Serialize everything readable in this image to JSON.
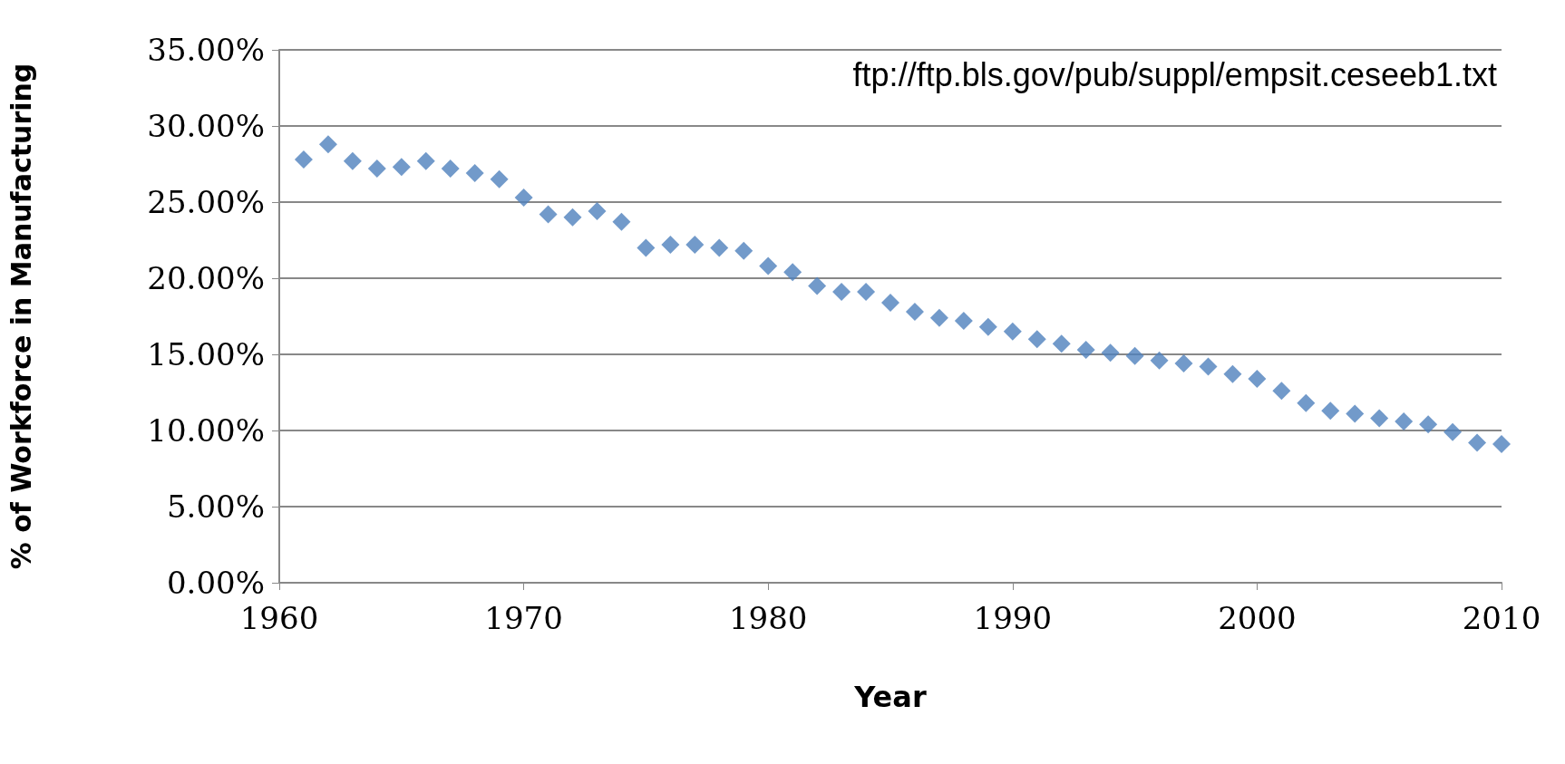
{
  "chart_data": {
    "type": "scatter",
    "xlabel": "Year",
    "ylabel": "% of Workforce in Manufacturing",
    "annotations": [
      "ftp://ftp.bls.gov/pub/suppl/empsit.ceseeb1.txt"
    ],
    "x": [
      1961,
      1962,
      1963,
      1964,
      1965,
      1966,
      1967,
      1968,
      1969,
      1970,
      1971,
      1972,
      1973,
      1974,
      1975,
      1976,
      1977,
      1978,
      1979,
      1980,
      1981,
      1982,
      1983,
      1984,
      1985,
      1986,
      1987,
      1988,
      1989,
      1990,
      1991,
      1992,
      1993,
      1994,
      1995,
      1996,
      1997,
      1998,
      1999,
      2000,
      2001,
      2002,
      2003,
      2004,
      2005,
      2006,
      2007,
      2008,
      2009,
      2010
    ],
    "values": [
      27.8,
      28.8,
      27.7,
      27.2,
      27.3,
      27.7,
      27.2,
      26.9,
      26.5,
      25.3,
      24.2,
      24.0,
      24.4,
      23.7,
      22.0,
      22.2,
      22.2,
      22.0,
      21.8,
      20.8,
      20.4,
      19.5,
      19.1,
      19.1,
      18.4,
      17.8,
      17.4,
      17.2,
      16.8,
      16.5,
      16.0,
      15.7,
      15.3,
      15.1,
      14.9,
      14.6,
      14.4,
      14.2,
      13.7,
      13.4,
      12.6,
      11.8,
      11.3,
      11.1,
      10.8,
      10.6,
      10.4,
      9.9,
      9.2,
      9.1
    ],
    "color": "#4f81bd",
    "marker": "diamond",
    "grid": "y",
    "xlim": [
      1960,
      2010
    ],
    "xticks": [
      1960,
      1970,
      1980,
      1990,
      2000,
      2010
    ],
    "ylim": [
      0,
      35
    ],
    "yticks": [
      {
        "value": 0,
        "label": "0.00%"
      },
      {
        "value": 5,
        "label": "5.00%"
      },
      {
        "value": 10,
        "label": "10.00%"
      },
      {
        "value": 15,
        "label": "15.00%"
      },
      {
        "value": 20,
        "label": "20.00%"
      },
      {
        "value": 25,
        "label": "25.00%"
      },
      {
        "value": 30,
        "label": "30.00%"
      },
      {
        "value": 35,
        "label": "35.00%"
      }
    ]
  }
}
